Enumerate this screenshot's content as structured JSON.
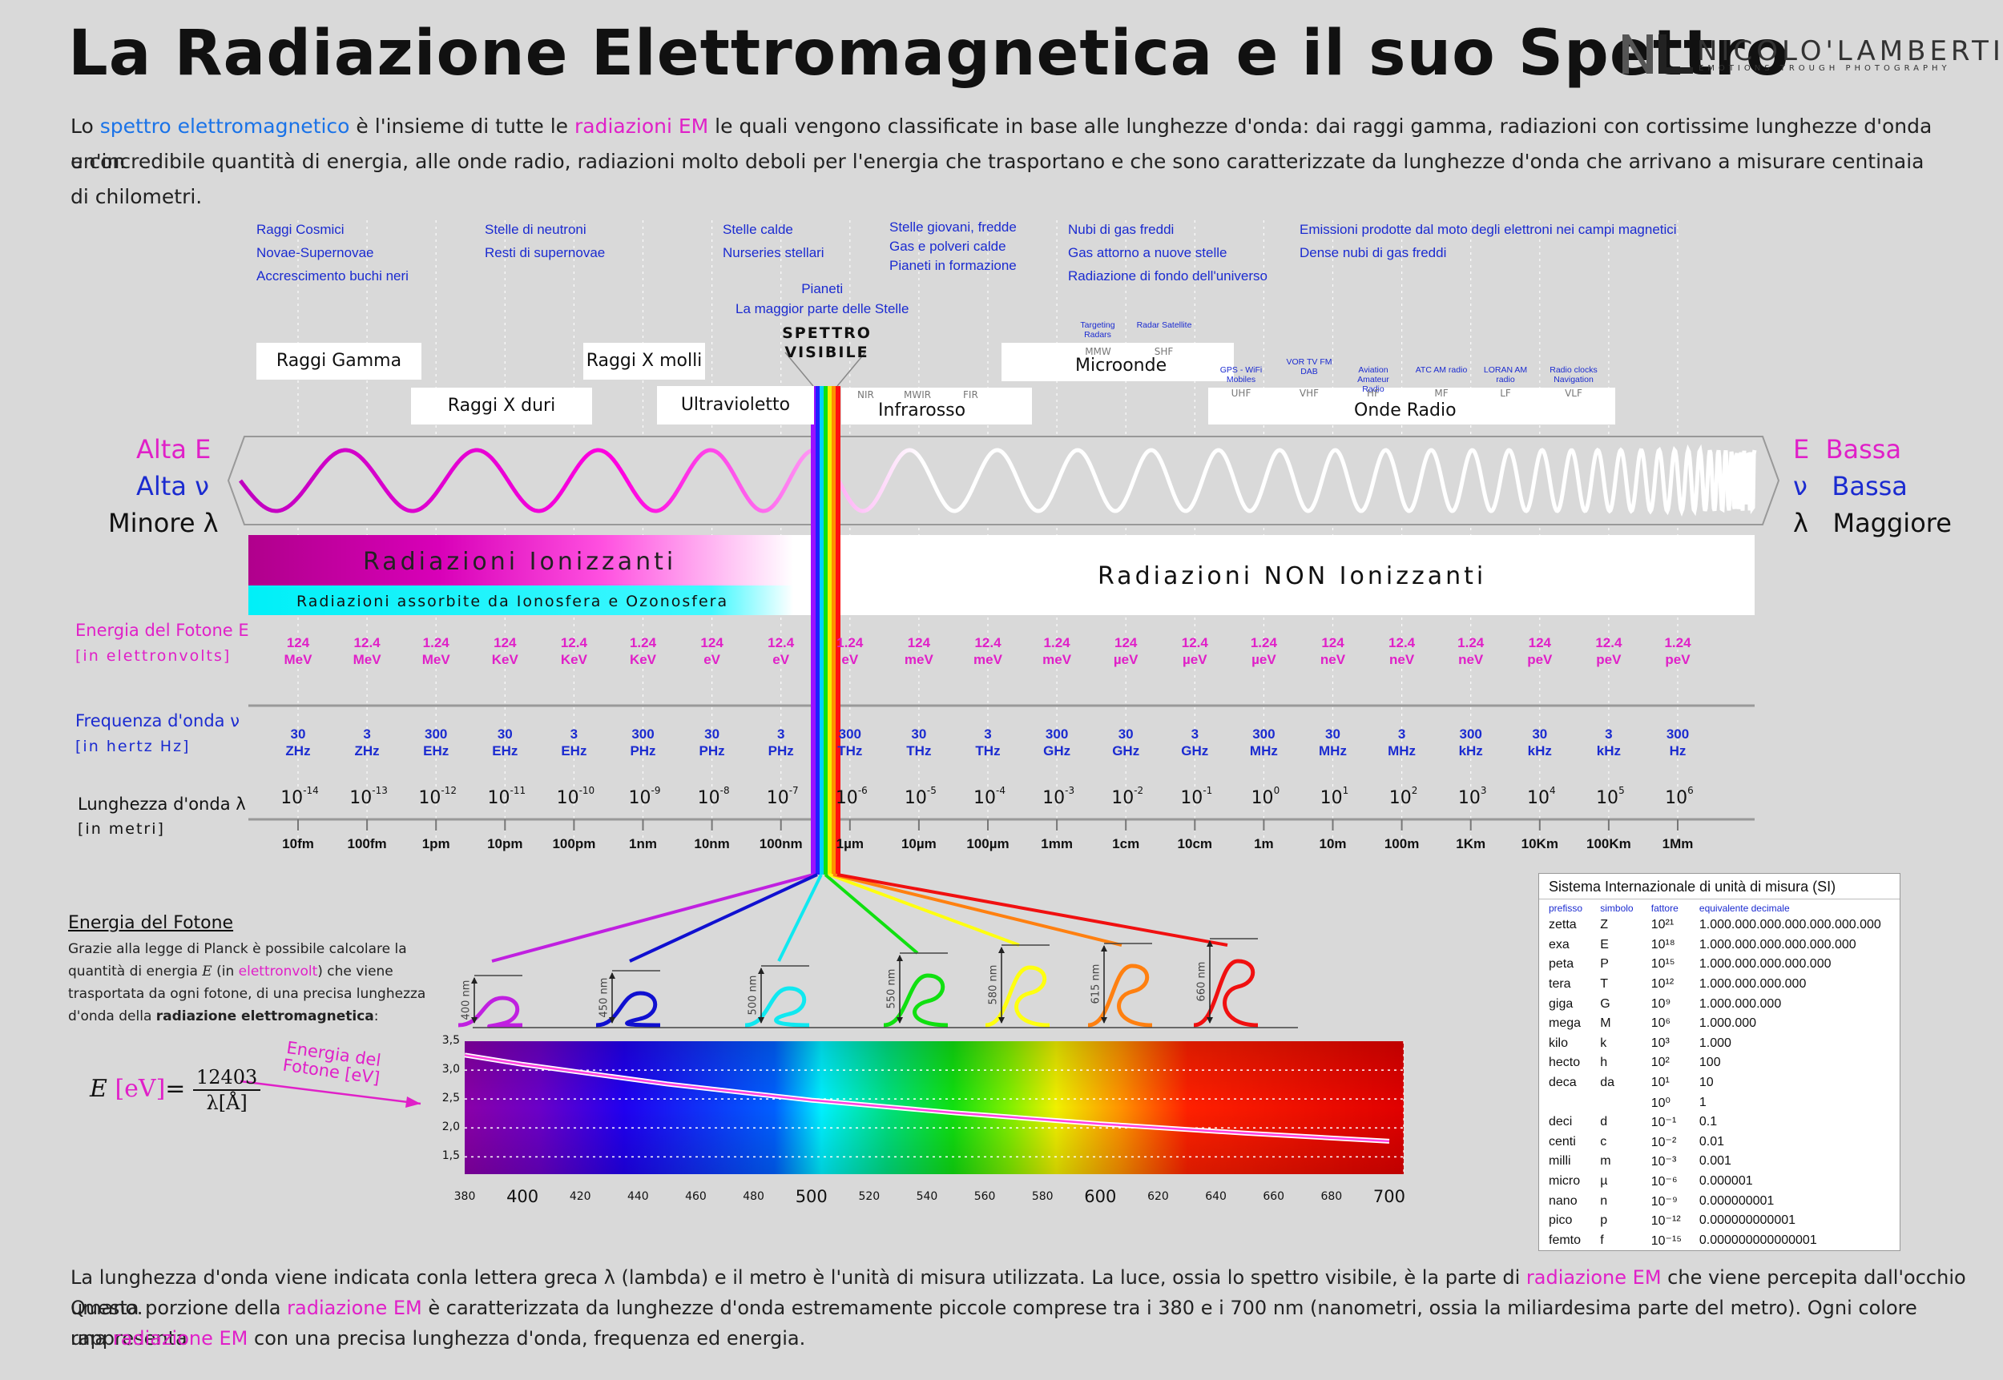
{
  "header": {
    "title": "La Radiazione Elettromagnetica e il suo Spettro",
    "logo_name": "NICOLO'LAMBERTI",
    "logo_tagline": "EMOTIONS TROUGH PHOTOGRAPHY"
  },
  "intro": {
    "p1": "Lo ",
    "k1": "spettro elettromagnetico",
    "p2": " è l'insieme di tutte le ",
    "k2": "radiazioni EM",
    "p3": " le quali vengono classificate in base alle lunghezze d'onda:  dai raggi gamma, radiazioni con cortissime lunghezze d'onda e con",
    "line2": "un'incredibile quantità di energia, alle onde radio, radiazioni molto deboli per l'energia che trasportano e che sono caratterizzate da lunghezze d'onda che arrivano a misurare centinaia di chilometri."
  },
  "sources": [
    [
      "Raggi Cosmici",
      "Novae-Supernovae",
      "Accrescimento buchi neri"
    ],
    [
      "Stelle di neutroni",
      "Resti di supernovae"
    ],
    [
      "Stelle calde",
      "Nurseries stellari"
    ],
    [
      "Pianeti",
      "La maggior parte delle Stelle"
    ],
    [
      "Stelle giovani, fredde",
      "Gas e polveri calde",
      "Pianeti in formazione"
    ],
    [
      "Nubi di gas freddi",
      "Gas attorno a nuove stelle",
      "Radiazione di fondo dell'universo"
    ],
    [
      "Emissioni prodotte dal moto degli elettroni nei campi magnetici",
      "Dense nubi di gas freddi"
    ]
  ],
  "bands": {
    "gamma": "Raggi Gamma",
    "hard_x": "Raggi X duri",
    "soft_x": "Raggi X molli",
    "uv": "Ultravioletto",
    "visible": "SPETTRO VISIBILE",
    "ir": "Infrarosso",
    "ir_codes": [
      "NIR",
      "MWIR",
      "FIR"
    ],
    "micro": "Microonde",
    "radio": "Onde Radio"
  },
  "microwave_labels": [
    {
      "name": "Targeting Radars",
      "code": "MMW"
    },
    {
      "name": "Radar Satellite",
      "code": "SHF"
    }
  ],
  "radio_labels": [
    {
      "name": "GPS - WiFi Mobiles",
      "code": "UHF"
    },
    {
      "name": "VOR TV FM DAB",
      "code": "VHF"
    },
    {
      "name": "Aviation Amateur Radio",
      "code": "HF"
    },
    {
      "name": "ATC AM radio",
      "code": "MF"
    },
    {
      "name": "LORAN AM radio",
      "code": "LF"
    },
    {
      "name": "Radio clocks Navigation",
      "code": "VLF"
    }
  ],
  "sides": {
    "left": [
      "Alta E",
      "Alta ν",
      "Minore λ"
    ],
    "right": [
      "E  Bassa",
      "ν   Bassa",
      "λ   Maggiore"
    ]
  },
  "ionizing": {
    "ion": "Radiazioni Ionizzanti",
    "absorbed": "Radiazioni assorbite da Ionosfera e Ozonosfera",
    "non_ion": "Radiazioni NON Ionizzanti"
  },
  "rows": {
    "energy_label": "Energia del Fotone E",
    "energy_sub": "[in elettronvolts]",
    "freq_label": "Frequenza d'onda ν",
    "freq_sub": "[in hertz Hz]",
    "wl_label": "Lunghezza d'onda λ",
    "wl_sub": "[in metri]"
  },
  "energy": [
    [
      "124",
      "MeV"
    ],
    [
      "12.4",
      "MeV"
    ],
    [
      "1.24",
      "MeV"
    ],
    [
      "124",
      "KeV"
    ],
    [
      "12.4",
      "KeV"
    ],
    [
      "1.24",
      "KeV"
    ],
    [
      "124",
      "eV"
    ],
    [
      "12.4",
      "eV"
    ],
    [
      "1.24",
      "eV"
    ],
    [
      "124",
      "meV"
    ],
    [
      "12.4",
      "meV"
    ],
    [
      "1.24",
      "meV"
    ],
    [
      "124",
      "µeV"
    ],
    [
      "12.4",
      "µeV"
    ],
    [
      "1.24",
      "µeV"
    ],
    [
      "124",
      "neV"
    ],
    [
      "12.4",
      "neV"
    ],
    [
      "1.24",
      "neV"
    ],
    [
      "124",
      "peV"
    ],
    [
      "12.4",
      "peV"
    ],
    [
      "1.24",
      "peV"
    ]
  ],
  "frequency": [
    [
      "30",
      "ZHz"
    ],
    [
      "3",
      "ZHz"
    ],
    [
      "300",
      "EHz"
    ],
    [
      "30",
      "EHz"
    ],
    [
      "3",
      "EHz"
    ],
    [
      "300",
      "PHz"
    ],
    [
      "30",
      "PHz"
    ],
    [
      "3",
      "PHz"
    ],
    [
      "300",
      "THz"
    ],
    [
      "30",
      "THz"
    ],
    [
      "3",
      "THz"
    ],
    [
      "300",
      "GHz"
    ],
    [
      "30",
      "GHz"
    ],
    [
      "3",
      "GHz"
    ],
    [
      "300",
      "MHz"
    ],
    [
      "30",
      "MHz"
    ],
    [
      "3",
      "MHz"
    ],
    [
      "300",
      "kHz"
    ],
    [
      "30",
      "kHz"
    ],
    [
      "3",
      "kHz"
    ],
    [
      "300",
      "Hz"
    ]
  ],
  "wavelength_exp": [
    "-14",
    "-13",
    "-12",
    "-11",
    "-10",
    "-9",
    "-8",
    "-7",
    "-6",
    "-5",
    "-4",
    "-3",
    "-2",
    "-1",
    "0",
    "1",
    "2",
    "3",
    "4",
    "5",
    "6"
  ],
  "wavelength_base": "10",
  "wavelength_names": [
    "10fm",
    "100fm",
    "1pm",
    "10pm",
    "100pm",
    "1nm",
    "10nm",
    "100nm",
    "1µm",
    "10µm",
    "100µm",
    "1mm",
    "1cm",
    "10cm",
    "1m",
    "10m",
    "100m",
    "1Km",
    "10Km",
    "100Km",
    "1Mm"
  ],
  "photon": {
    "title": "Energia del Fotone",
    "text_a": "Grazie alla legge di Planck è possibile calcolare la quantità di energia ",
    "text_E": "E",
    "text_b": " (in ",
    "text_k": "elettronvolt",
    "text_c": ") che viene trasportata da ogni fotone, di una precisa lunghezza d'onda della ",
    "text_d": "radiazione elettromagnetica",
    "text_e": ":",
    "formula_E": "E",
    "formula_unit": "[eV]",
    "formula_eq": "=",
    "formula_num": "12403",
    "formula_den": "λ[Å]",
    "arrow_label": "Energia del Fotone [eV]"
  },
  "peaks": [
    {
      "nm": "400 nm",
      "color": "#c020e0"
    },
    {
      "nm": "450 nm",
      "color": "#1010d0"
    },
    {
      "nm": "500 nm",
      "color": "#10e8f0"
    },
    {
      "nm": "550 nm",
      "color": "#10e010"
    },
    {
      "nm": "580 nm",
      "color": "#ffff10"
    },
    {
      "nm": "615 nm",
      "color": "#ff8010"
    },
    {
      "nm": "660 nm",
      "color": "#f01010"
    }
  ],
  "chart_data": {
    "type": "line",
    "title": "",
    "xlabel": "",
    "ylabel": "",
    "x": [
      380,
      400,
      450,
      500,
      550,
      600,
      650,
      700
    ],
    "series": [
      {
        "name": "Energia del Fotone [eV]",
        "values": [
          3.26,
          3.1,
          2.76,
          2.48,
          2.26,
          2.07,
          1.91,
          1.77
        ]
      }
    ],
    "xlim": [
      380,
      705
    ],
    "ylim": [
      1.2,
      3.5
    ],
    "xticks": [
      "380",
      "400",
      "420",
      "440",
      "460",
      "480",
      "500",
      "520",
      "540",
      "560",
      "580",
      "600",
      "620",
      "640",
      "660",
      "680",
      "700"
    ],
    "major_xticks": [
      "400",
      "500",
      "600",
      "700"
    ],
    "yticks": [
      "3,5",
      "3,0",
      "2,5",
      "2,0",
      "1,5"
    ],
    "line_color": "#ff40e0"
  },
  "si_table": {
    "title": "Sistema Internazionale di unità di misura (SI)",
    "headers": [
      "prefisso",
      "simbolo",
      "fattore",
      "equivalente decimale"
    ],
    "rows": [
      [
        "zetta",
        "Z",
        "10²¹",
        "1.000.000.000.000.000.000.000"
      ],
      [
        "exa",
        "E",
        "10¹⁸",
        "1.000.000.000.000.000.000"
      ],
      [
        "peta",
        "P",
        "10¹⁵",
        "1.000.000.000.000.000"
      ],
      [
        "tera",
        "T",
        "10¹²",
        "1.000.000.000.000"
      ],
      [
        "giga",
        "G",
        "10⁹",
        "1.000.000.000"
      ],
      [
        "mega",
        "M",
        "10⁶",
        "1.000.000"
      ],
      [
        "kilo",
        "k",
        "10³",
        "1.000"
      ],
      [
        "hecto",
        "h",
        "10²",
        "100"
      ],
      [
        "deca",
        "da",
        "10¹",
        "10"
      ],
      [
        "",
        "",
        "10⁰",
        "1"
      ],
      [
        "deci",
        "d",
        "10⁻¹",
        "0.1"
      ],
      [
        "centi",
        "c",
        "10⁻²",
        "0.01"
      ],
      [
        "milli",
        "m",
        "10⁻³",
        "0.001"
      ],
      [
        "micro",
        "µ",
        "10⁻⁶",
        "0.000001"
      ],
      [
        "nano",
        "n",
        "10⁻⁹",
        "0.000000001"
      ],
      [
        "pico",
        "p",
        "10⁻¹²",
        "0.000000000001"
      ],
      [
        "femto",
        "f",
        "10⁻¹⁵",
        "0.000000000000001"
      ]
    ]
  },
  "footer": {
    "l1a": "La lunghezza d'onda viene indicata conla lettera greca λ (lambda) e il metro è l'unità di misura utilizzata. La luce, ossia lo spettro visibile, è la parte di ",
    "l1k": "radiazione EM",
    "l1b": " che viene percepita dall'occhio umano.",
    "l2a": "Questa porzione della ",
    "l2k": "radiazione EM",
    "l2b": " è caratterizzata da lunghezze d'onda estremamente piccole comprese tra i 380 e i 700 nm (nanometri, ossia la miliardesima parte del metro). Ogni colore rappresenta",
    "l3a": "una ",
    "l3k": "radiazione EM",
    "l3b": " con una precisa lunghezza d'onda, frequenza ed energia."
  },
  "colors": {
    "magenta": "#e020c8",
    "blue": "#1b2bd0",
    "link_blue": "#1a73e8",
    "background": "#d9d9d9"
  }
}
